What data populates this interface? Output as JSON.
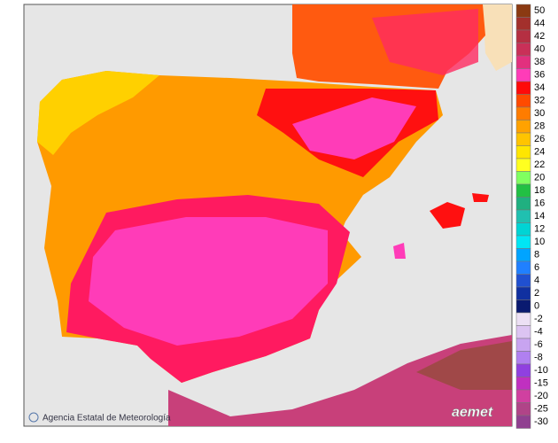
{
  "legend": {
    "items": [
      {
        "label": "50",
        "color": "#8b3a12"
      },
      {
        "label": "44",
        "color": "#a3302c"
      },
      {
        "label": "42",
        "color": "#b52f42"
      },
      {
        "label": "40",
        "color": "#c93058"
      },
      {
        "label": "38",
        "color": "#e2307e"
      },
      {
        "label": "36",
        "color": "#ff3cb8"
      },
      {
        "label": "34",
        "color": "#ff0a0a"
      },
      {
        "label": "32",
        "color": "#ff4a00"
      },
      {
        "label": "30",
        "color": "#ff7c00"
      },
      {
        "label": "28",
        "color": "#ffa200"
      },
      {
        "label": "26",
        "color": "#ffc400"
      },
      {
        "label": "24",
        "color": "#ffe600"
      },
      {
        "label": "22",
        "color": "#ffff20"
      },
      {
        "label": "20",
        "color": "#80ff60"
      },
      {
        "label": "18",
        "color": "#22c044"
      },
      {
        "label": "16",
        "color": "#20b080"
      },
      {
        "label": "14",
        "color": "#20c0b0"
      },
      {
        "label": "12",
        "color": "#00d4d4"
      },
      {
        "label": "10",
        "color": "#00e6f4"
      },
      {
        "label": "8",
        "color": "#00a4ff"
      },
      {
        "label": "6",
        "color": "#2080ff"
      },
      {
        "label": "4",
        "color": "#2050d0"
      },
      {
        "label": "2",
        "color": "#1030a0"
      },
      {
        "label": "0",
        "color": "#0a1a70"
      }
    ],
    "negative_items": [
      {
        "label": "-2",
        "color": "#ece0f4"
      },
      {
        "label": "-4",
        "color": "#dcc4f2"
      },
      {
        "label": "-6",
        "color": "#c8a4f0"
      },
      {
        "label": "-8",
        "color": "#b080f0"
      },
      {
        "label": "-10",
        "color": "#9040e0"
      },
      {
        "label": "-15",
        "color": "#c030c0"
      },
      {
        "label": "-20",
        "color": "#d040a0"
      },
      {
        "label": "-25",
        "color": "#b04488"
      },
      {
        "label": "-30",
        "color": "#904090"
      }
    ]
  },
  "footer": {
    "credit": "Agencia Estatal de Meteorología",
    "logo": "aemet"
  }
}
